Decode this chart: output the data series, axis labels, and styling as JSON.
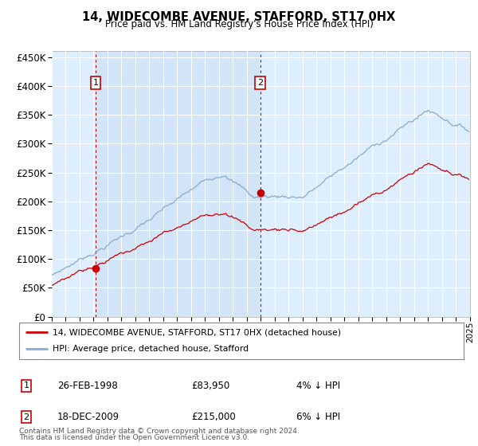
{
  "title": "14, WIDECOMBE AVENUE, STAFFORD, ST17 0HX",
  "subtitle": "Price paid vs. HM Land Registry's House Price Index (HPI)",
  "yticks": [
    0,
    50000,
    100000,
    150000,
    200000,
    250000,
    300000,
    350000,
    400000,
    450000
  ],
  "ylim": [
    0,
    460000
  ],
  "xlim": [
    1995,
    2025
  ],
  "legend_line1": "14, WIDECOMBE AVENUE, STAFFORD, ST17 0HX (detached house)",
  "legend_line2": "HPI: Average price, detached house, Stafford",
  "annotation1_label": "1",
  "annotation1_date": "26-FEB-1998",
  "annotation1_price": "£83,950",
  "annotation1_note": "4% ↓ HPI",
  "annotation2_label": "2",
  "annotation2_date": "18-DEC-2009",
  "annotation2_price": "£215,000",
  "annotation2_note": "6% ↓ HPI",
  "footnote_line1": "Contains HM Land Registry data © Crown copyright and database right 2024.",
  "footnote_line2": "This data is licensed under the Open Government Licence v3.0.",
  "sale1_year": 1998.15,
  "sale1_price": 83950,
  "sale2_year": 2009.96,
  "sale2_price": 215000,
  "line_color_property": "#cc0000",
  "line_color_hpi": "#88aacc",
  "background_color": "#ddeeff",
  "grid_color": "#ffffff",
  "annotation_box_color": "#cc0000",
  "dashed_line_color": "#cc0000",
  "highlight_bg": "#ccddf0"
}
